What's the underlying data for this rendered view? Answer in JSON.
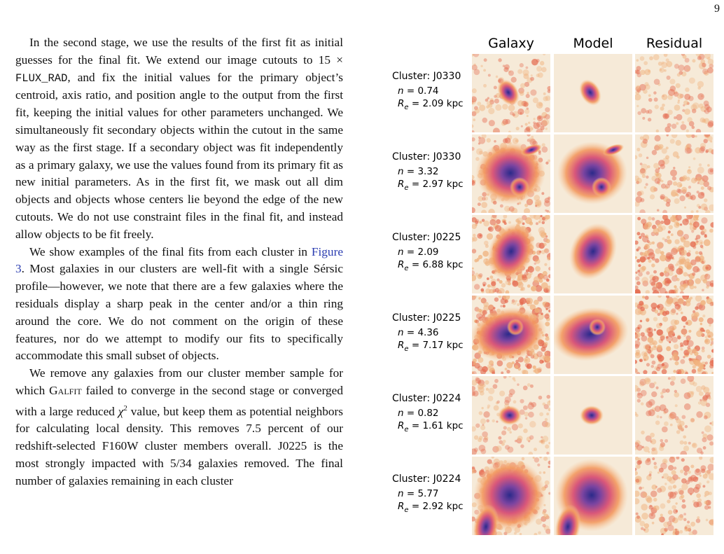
{
  "page_number": "9",
  "paragraphs": [
    [
      "In the second stage, we use the results of the first fit as initial guesses for the final fit. We extend our image cutouts to 15 × ",
      "FLUX_RAD",
      ", and fix the initial values for the primary object’s centroid, axis ratio, and position angle to the output from the first fit, keeping the initial values for other parameters unchanged. We simultaneously fit secondary objects within the cutout in the same way as the first stage. If a secondary object was fit independently as a primary galaxy, we use the values found from its primary fit as new initial parameters. As in the first fit, we mask out all dim objects and objects whose centers lie beyond the edge of the new cutouts. We do not use constraint files in the final fit, and instead allow objects to be fit freely."
    ],
    [
      "We show examples of the final fits from each cluster in ",
      "Figure 3",
      ". Most galaxies in our clusters are well-fit with a single Sérsic profile—however, we note that there are a few galaxies where the residuals display a sharp peak in the center and/or a thin ring around the core. We do not comment on the origin of these features, nor do we attempt to modify our fits to specifically accommodate this small subset of objects."
    ],
    [
      "We remove any galaxies from our cluster member sample for which ",
      "Galfit",
      " failed to converge in the second stage or converged with a large reduced ",
      "χ",
      "2",
      " value, but keep them as potential neighbors for calculating local density. This removes 7.5 percent of our redshift-selected F160W cluster members overall. J0225 is the most strongly impacted with 5/34 galaxies removed. The final number of galaxies remaining in each cluster"
    ]
  ],
  "figure": {
    "column_headers": [
      "Galaxy",
      "Model",
      "Residual"
    ],
    "rows": [
      {
        "cluster": "Cluster: J0330",
        "n_symbol": "n",
        "n_value": " = 0.74",
        "re_symbol": "R",
        "re_sub": "e",
        "re_value": " = 2.09 kpc"
      },
      {
        "cluster": "Cluster: J0330",
        "n_symbol": "n",
        "n_value": " = 3.32",
        "re_symbol": "R",
        "re_sub": "e",
        "re_value": " = 2.97 kpc"
      },
      {
        "cluster": "Cluster: J0225",
        "n_symbol": "n",
        "n_value": " = 2.09",
        "re_symbol": "R",
        "re_sub": "e",
        "re_value": " = 6.88 kpc"
      },
      {
        "cluster": "Cluster: J0225",
        "n_symbol": "n",
        "n_value": " = 4.36",
        "re_symbol": "R",
        "re_sub": "e",
        "re_value": " = 7.17 kpc"
      },
      {
        "cluster": "Cluster: J0224",
        "n_symbol": "n",
        "n_value": " = 0.82",
        "re_symbol": "R",
        "re_sub": "e",
        "re_value": " = 1.61 kpc"
      },
      {
        "cluster": "Cluster: J0224",
        "n_symbol": "n",
        "n_value": " = 5.77",
        "re_symbol": "R",
        "re_sub": "e",
        "re_value": " = 2.92 kpc"
      }
    ]
  }
}
